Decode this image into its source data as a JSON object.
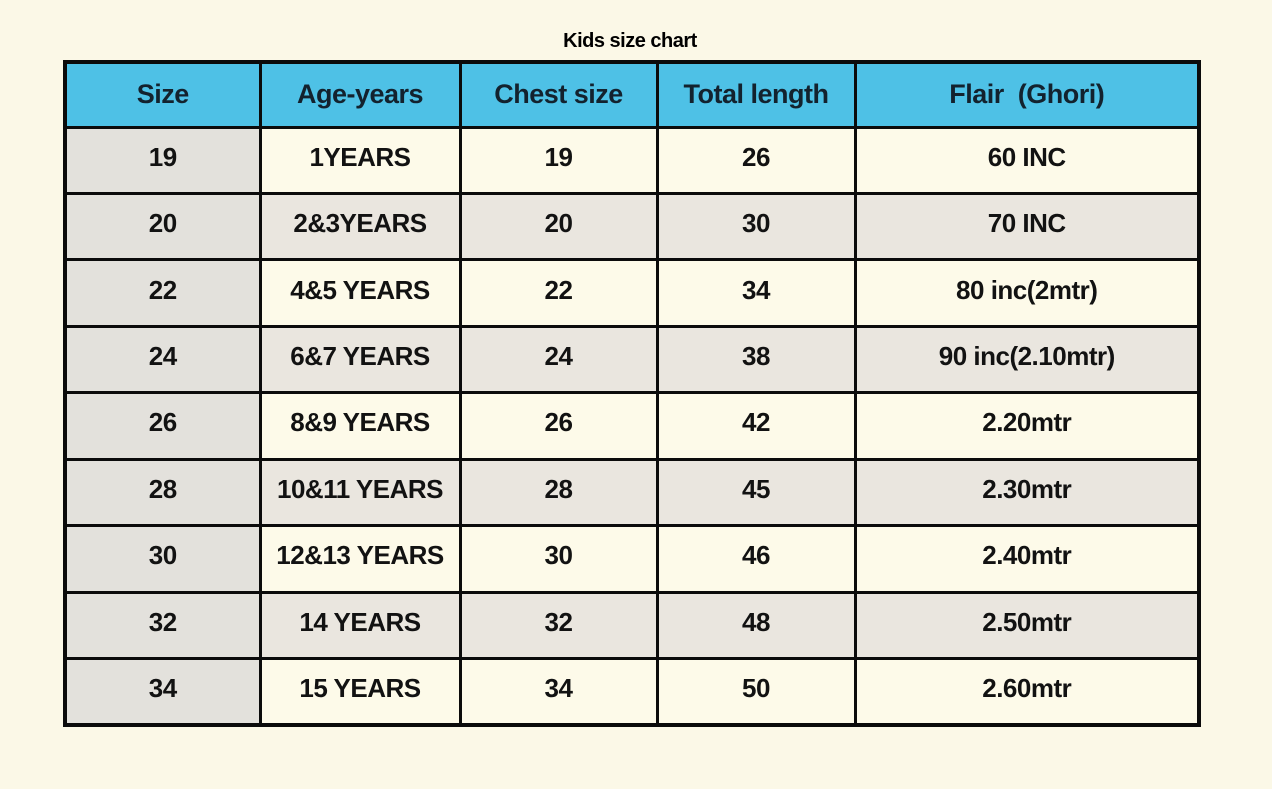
{
  "title": "Kids size chart",
  "chart_data": {
    "type": "table",
    "title": "Kids size chart",
    "columns": [
      "Size",
      "Age-years",
      "Chest size",
      "Total length",
      "Flair  (Ghori)"
    ],
    "rows": [
      [
        "19",
        "1YEARS",
        "19",
        "26",
        "60 INC"
      ],
      [
        "20",
        "2&3YEARS",
        "20",
        "30",
        "70 INC"
      ],
      [
        "22",
        "4&5 YEARS",
        "22",
        "34",
        "80 inc(2mtr)"
      ],
      [
        "24",
        "6&7 YEARS",
        "24",
        "38",
        "90 inc(2.10mtr)"
      ],
      [
        "26",
        "8&9 YEARS",
        "26",
        "42",
        "2.20mtr"
      ],
      [
        "28",
        "10&11 YEARS",
        "28",
        "45",
        "2.30mtr"
      ],
      [
        "30",
        "12&13 YEARS",
        "30",
        "46",
        "2.40mtr"
      ],
      [
        "32",
        "14 YEARS",
        "32",
        "48",
        "2.50mtr"
      ],
      [
        "34",
        "15 YEARS",
        "34",
        "50",
        "2.60mtr"
      ]
    ],
    "layout": {
      "header_row": true,
      "grid": "on",
      "row_striping": "odd rows cream, even rows light gray, first column always gray"
    }
  },
  "colors": {
    "page-bg": "#fbf8e7",
    "header-bg": "#4ec1e6",
    "header-text": "#13222e",
    "size-column-bg": "#e3e1dc",
    "row-odd-bg": "#fdfae9",
    "row-even-bg": "#eae6df",
    "border": "#0b0b0b",
    "cell-text": "#121212"
  }
}
